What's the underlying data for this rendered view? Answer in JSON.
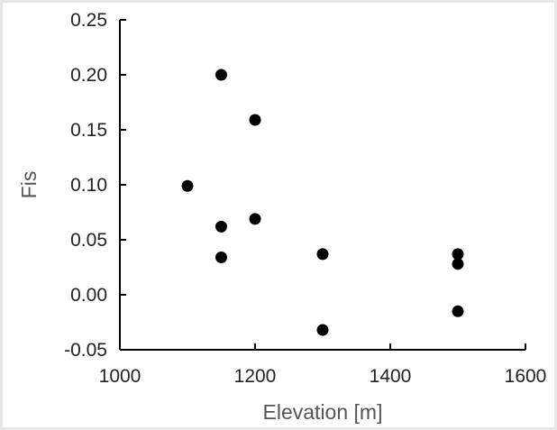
{
  "chart_data": {
    "type": "scatter",
    "title": "",
    "xlabel": "Elevation [m]",
    "ylabel": "Fis",
    "xlim": [
      1000,
      1600
    ],
    "ylim": [
      -0.05,
      0.25
    ],
    "x_ticks": [
      1000,
      1200,
      1400,
      1600
    ],
    "y_ticks": [
      -0.05,
      0.0,
      0.05,
      0.1,
      0.15,
      0.2,
      0.25
    ],
    "x_tick_labels": [
      "1000",
      "1200",
      "1400",
      "1600"
    ],
    "y_tick_labels": [
      "-0.05",
      "0.00",
      "0.05",
      "0.10",
      "0.15",
      "0.20",
      "0.25"
    ],
    "grid": false,
    "legend": "none",
    "marker_color": "#000000",
    "points": [
      {
        "x": 1100,
        "y": 0.099
      },
      {
        "x": 1150,
        "y": 0.2
      },
      {
        "x": 1150,
        "y": 0.062
      },
      {
        "x": 1150,
        "y": 0.034
      },
      {
        "x": 1200,
        "y": 0.159
      },
      {
        "x": 1200,
        "y": 0.069
      },
      {
        "x": 1300,
        "y": 0.037
      },
      {
        "x": 1300,
        "y": -0.032
      },
      {
        "x": 1500,
        "y": 0.037
      },
      {
        "x": 1500,
        "y": 0.028
      },
      {
        "x": 1500,
        "y": -0.015
      }
    ]
  }
}
